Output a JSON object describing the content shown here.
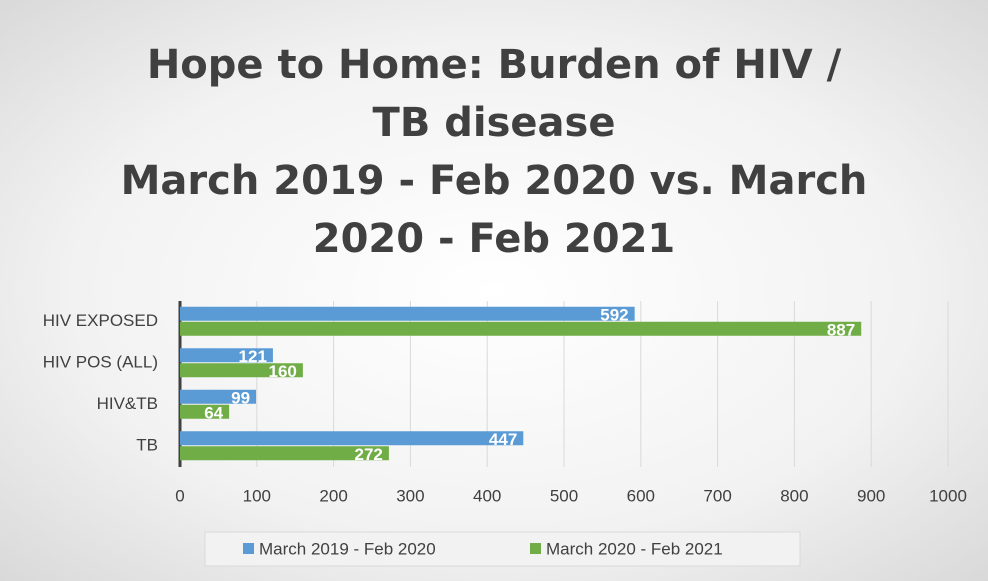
{
  "chart_data": {
    "type": "bar",
    "orientation": "horizontal",
    "title": "Hope to Home: Burden of HIV / TB disease",
    "subtitle": "March 2019 - Feb 2020 vs. March 2020 - Feb 2021",
    "categories": [
      "HIV EXPOSED",
      "HIV POS (ALL)",
      "HIV&TB",
      "TB"
    ],
    "series": [
      {
        "name": "March 2019 - Feb 2020",
        "color": "#5b9bd5",
        "values": [
          592,
          121,
          99,
          447
        ]
      },
      {
        "name": "March 2020 - Feb 2021",
        "color": "#70ad47",
        "values": [
          887,
          160,
          64,
          272
        ]
      }
    ],
    "xlim": [
      0,
      1000
    ],
    "xticks": [
      0,
      100,
      200,
      300,
      400,
      500,
      600,
      700,
      800,
      900,
      1000
    ],
    "grid": true,
    "legend": "bottom"
  }
}
